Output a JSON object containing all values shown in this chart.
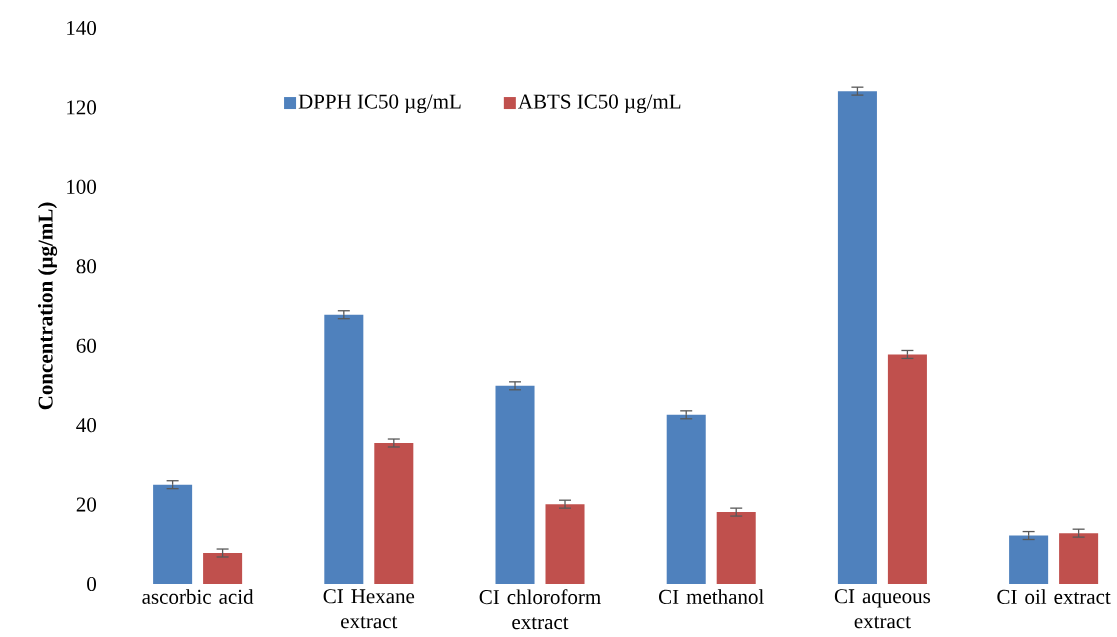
{
  "chart_data": {
    "type": "bar",
    "ylabel": "Concentration (µg/mL)",
    "categories": [
      "ascorbic acid",
      "CI Hexane extract",
      "CI chloroform extract",
      "CI methanol",
      "CI aqueous extract",
      "CI oil extract"
    ],
    "series": [
      {
        "name": "DPPH IC50 µg/mL",
        "color": "#4f81bd",
        "values": [
          25.0,
          67.8,
          49.9,
          42.6,
          124.1,
          12.2
        ],
        "errors": [
          1,
          1,
          1,
          1,
          1,
          1
        ]
      },
      {
        "name": "ABTS IC50 µg/mL",
        "color": "#c0504d",
        "values": [
          7.8,
          35.5,
          20.1,
          18.1,
          57.8,
          12.8
        ],
        "errors": [
          1,
          1,
          1,
          1,
          1,
          1
        ]
      }
    ],
    "ylim": [
      0,
      140
    ],
    "yticks": [
      0,
      20,
      40,
      60,
      80,
      100,
      120,
      140
    ],
    "grid": false,
    "legend": "top"
  }
}
